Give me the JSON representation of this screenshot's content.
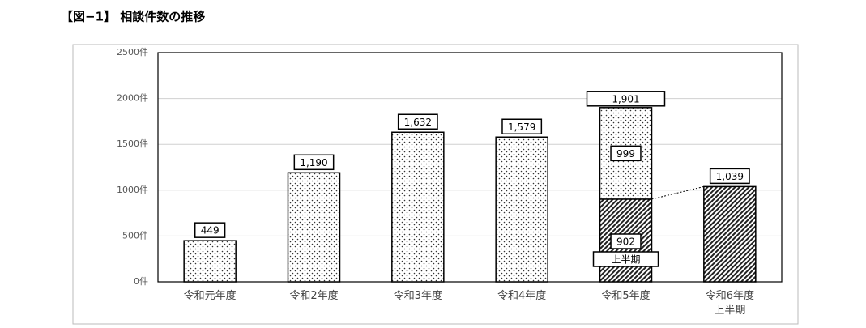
{
  "chart_data": {
    "type": "bar",
    "stacked": true,
    "title": "【図−1】 相談件数の推移",
    "categories": [
      "令和元年度",
      "令和2年度",
      "令和3年度",
      "令和4年度",
      "令和5年度",
      "令和6年度\n上半期"
    ],
    "series": [
      {
        "pattern": "dots",
        "values": [
          449,
          1190,
          1632,
          1579,
          999,
          null
        ],
        "value_labels": [
          "449",
          "1,190",
          "1,632",
          "1,579",
          "999",
          null
        ]
      },
      {
        "name": "上半期",
        "pattern": "hatch",
        "values": [
          null,
          null,
          null,
          null,
          902,
          1039
        ],
        "value_labels": [
          null,
          null,
          null,
          null,
          "902",
          "1,039"
        ]
      }
    ],
    "annotations": [
      {
        "category": 4,
        "value": 1901,
        "text": "1,901"
      }
    ],
    "ylim": [
      0,
      2500
    ],
    "yticks": [
      {
        "value": 0,
        "label": "0件"
      },
      {
        "value": 500,
        "label": "500件"
      },
      {
        "value": 1000,
        "label": "1000件"
      },
      {
        "value": 1500,
        "label": "1500件"
      },
      {
        "value": 2000,
        "label": "2000件"
      },
      {
        "value": 2500,
        "label": "2500件"
      }
    ],
    "grid": true
  }
}
